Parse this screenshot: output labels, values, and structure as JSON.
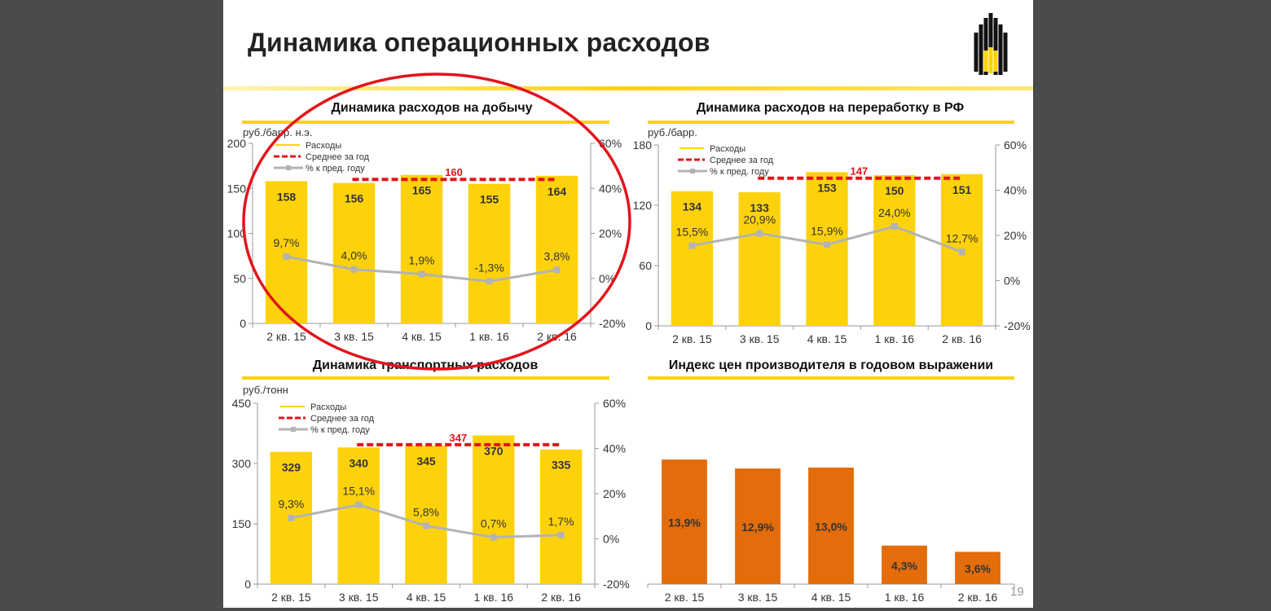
{
  "slide": {
    "title": "Динамика операционных расходов",
    "page_number": "19",
    "logo": "Rosneft logo"
  },
  "colors": {
    "bar": "#fdd20a",
    "avg": "#e3141b",
    "line": "#b3b3b3",
    "ppi_bar": "#e46c0a",
    "accent": "#fdd20a",
    "circle": "#e3141b"
  },
  "legend": {
    "bars": "Расходы",
    "avg": "Среднее за год",
    "line": "% к пред. году"
  },
  "chart_data": [
    {
      "type": "bar",
      "title": "Динамика расходов на добычу",
      "ylabel": "руб./барр. н.э.",
      "categories": [
        "2 кв. 15",
        "3 кв. 15",
        "4 кв. 15",
        "1 кв. 16",
        "2 кв. 16"
      ],
      "values": [
        158,
        156,
        165,
        155,
        164
      ],
      "value_labels": [
        "158",
        "156",
        "165",
        "155",
        "164"
      ],
      "ylim": [
        0,
        200
      ],
      "yticks": [
        "0",
        "50",
        "100",
        "150",
        "200"
      ],
      "y2lim": [
        -20,
        60
      ],
      "y2ticks": [
        "-20%",
        "0%",
        "20%",
        "40%",
        "60%"
      ],
      "line": {
        "name": "% к пред. году",
        "values": [
          9.7,
          4.0,
          1.9,
          -1.3,
          3.8
        ],
        "labels": [
          "9,7%",
          "4,0%",
          "1,9%",
          "-1,3%",
          "3,8%"
        ]
      },
      "average": {
        "name": "Среднее за год",
        "value": 160,
        "label": "160",
        "from_index": 1,
        "to_index": 4
      }
    },
    {
      "type": "bar",
      "title": "Динамика расходов на переработку в РФ",
      "ylabel": "руб./барр.",
      "categories": [
        "2 кв. 15",
        "3 кв. 15",
        "4 кв. 15",
        "1 кв. 16",
        "2 кв. 16"
      ],
      "values": [
        134,
        133,
        153,
        150,
        151
      ],
      "value_labels": [
        "134",
        "133",
        "153",
        "150",
        "151"
      ],
      "ylim": [
        0,
        180
      ],
      "yticks": [
        "0",
        "60",
        "120",
        "180"
      ],
      "y2lim": [
        -20,
        60
      ],
      "y2ticks": [
        "-20%",
        "0%",
        "20%",
        "40%",
        "60%"
      ],
      "line": {
        "name": "% к пред. году",
        "values": [
          15.5,
          20.9,
          15.9,
          24.0,
          12.7
        ],
        "labels": [
          "15,5%",
          "20,9%",
          "15,9%",
          "24,0%",
          "12,7%"
        ]
      },
      "average": {
        "name": "Среднее за год",
        "value": 147,
        "label": "147",
        "from_index": 1,
        "to_index": 4
      }
    },
    {
      "type": "bar",
      "title": "Динамика транспортных расходов",
      "ylabel": "руб./тонн",
      "categories": [
        "2 кв. 15",
        "3 кв. 15",
        "4 кв. 15",
        "1 кв. 16",
        "2 кв. 16"
      ],
      "values": [
        329,
        340,
        345,
        370,
        335
      ],
      "value_labels": [
        "329",
        "340",
        "345",
        "370",
        "335"
      ],
      "ylim": [
        0,
        450
      ],
      "yticks": [
        "0",
        "150",
        "300",
        "450"
      ],
      "y2lim": [
        -20,
        60
      ],
      "y2ticks": [
        "-20%",
        "0%",
        "20%",
        "40%",
        "60%"
      ],
      "line": {
        "name": "% к пред. году",
        "values": [
          9.3,
          15.1,
          5.8,
          0.7,
          1.7
        ],
        "labels": [
          "9,3%",
          "15,1%",
          "5,8%",
          "0,7%",
          "1,7%"
        ]
      },
      "average": {
        "name": "Среднее за год",
        "value": 347,
        "label": "347",
        "from_index": 1,
        "to_index": 4
      }
    },
    {
      "type": "bar",
      "title": "Индекс цен производителя в годовом выражении",
      "ylabel": "",
      "categories": [
        "2 кв. 15",
        "3 кв. 15",
        "4 кв. 15",
        "1 кв. 16",
        "2 кв. 16"
      ],
      "values": [
        13.9,
        12.9,
        13.0,
        4.3,
        3.6
      ],
      "value_labels": [
        "13,9%",
        "12,9%",
        "13,0%",
        "4,3%",
        "3,6%"
      ],
      "ylim": [
        0,
        20
      ]
    }
  ]
}
